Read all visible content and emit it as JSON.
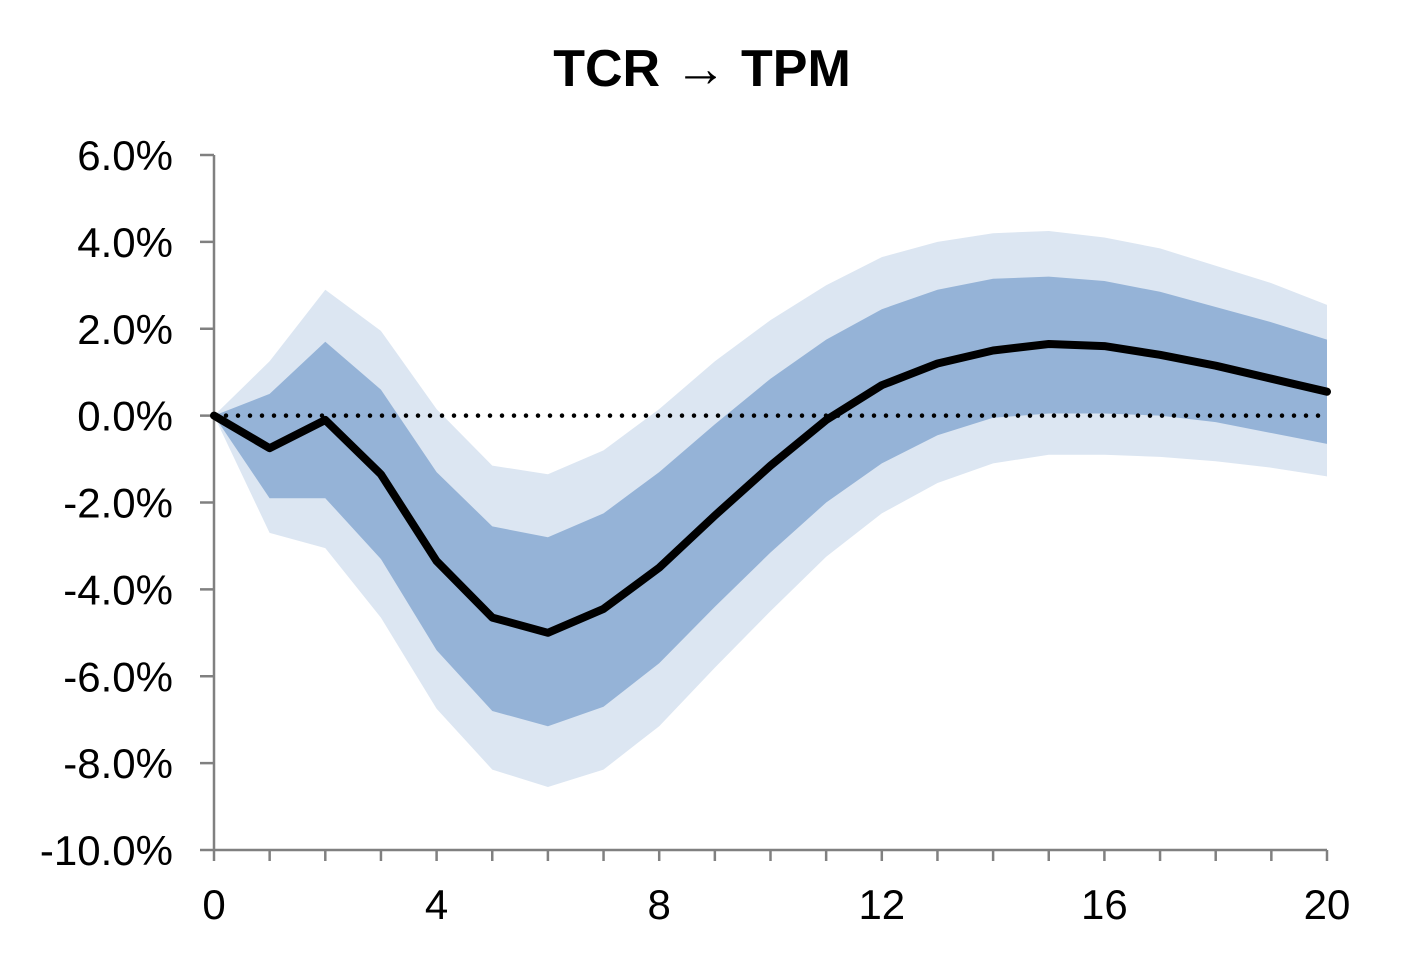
{
  "chart_data": {
    "type": "area",
    "title": "TCR → TPM",
    "xlabel": "",
    "ylabel": "",
    "x": [
      0,
      1,
      2,
      3,
      4,
      5,
      6,
      7,
      8,
      9,
      10,
      11,
      12,
      13,
      14,
      15,
      16,
      17,
      18,
      19,
      20
    ],
    "xlim": [
      0,
      20
    ],
    "ylim": [
      -10,
      6
    ],
    "x_ticks": [
      0,
      4,
      8,
      12,
      16,
      20
    ],
    "x_tick_labels": [
      "0",
      "4",
      "8",
      "12",
      "16",
      "20"
    ],
    "y_ticks": [
      6,
      4,
      2,
      0,
      -2,
      -4,
      -6,
      -8,
      -10
    ],
    "y_tick_labels": [
      "6.0%",
      "4.0%",
      "2.0%",
      "0.0%",
      "-2.0%",
      "-4.0%",
      "-6.0%",
      "-8.0%",
      "-10.0%"
    ],
    "grid": false,
    "legend": "none",
    "zero_line": {
      "value": 0,
      "style": "dotted"
    },
    "series": [
      {
        "role": "median",
        "values": [
          0.0,
          -0.75,
          -0.1,
          -1.35,
          -3.35,
          -4.65,
          -5.0,
          -4.45,
          -3.5,
          -2.3,
          -1.15,
          -0.1,
          0.7,
          1.2,
          1.5,
          1.65,
          1.6,
          1.4,
          1.15,
          0.85,
          0.55
        ],
        "color": "#000000"
      },
      {
        "role": "inner-band",
        "lower": [
          0.0,
          -1.9,
          -1.9,
          -3.3,
          -5.4,
          -6.8,
          -7.15,
          -6.7,
          -5.7,
          -4.4,
          -3.15,
          -2.0,
          -1.1,
          -0.45,
          -0.05,
          0.05,
          0.05,
          0.0,
          -0.15,
          -0.4,
          -0.65
        ],
        "upper": [
          0.0,
          0.5,
          1.7,
          0.6,
          -1.3,
          -2.55,
          -2.8,
          -2.25,
          -1.3,
          -0.2,
          0.85,
          1.75,
          2.45,
          2.9,
          3.15,
          3.2,
          3.1,
          2.85,
          2.5,
          2.15,
          1.75
        ],
        "color": "#95b3d7"
      },
      {
        "role": "outer-band",
        "lower": [
          0.0,
          -2.7,
          -3.05,
          -4.65,
          -6.75,
          -8.15,
          -8.55,
          -8.15,
          -7.15,
          -5.8,
          -4.5,
          -3.25,
          -2.25,
          -1.55,
          -1.1,
          -0.9,
          -0.9,
          -0.95,
          -1.05,
          -1.2,
          -1.4
        ],
        "upper": [
          0.0,
          1.25,
          2.9,
          1.95,
          0.15,
          -1.15,
          -1.35,
          -0.8,
          0.15,
          1.25,
          2.2,
          3.0,
          3.65,
          4.0,
          4.2,
          4.25,
          4.1,
          3.85,
          3.45,
          3.05,
          2.55
        ],
        "color": "#dce6f2"
      }
    ]
  }
}
